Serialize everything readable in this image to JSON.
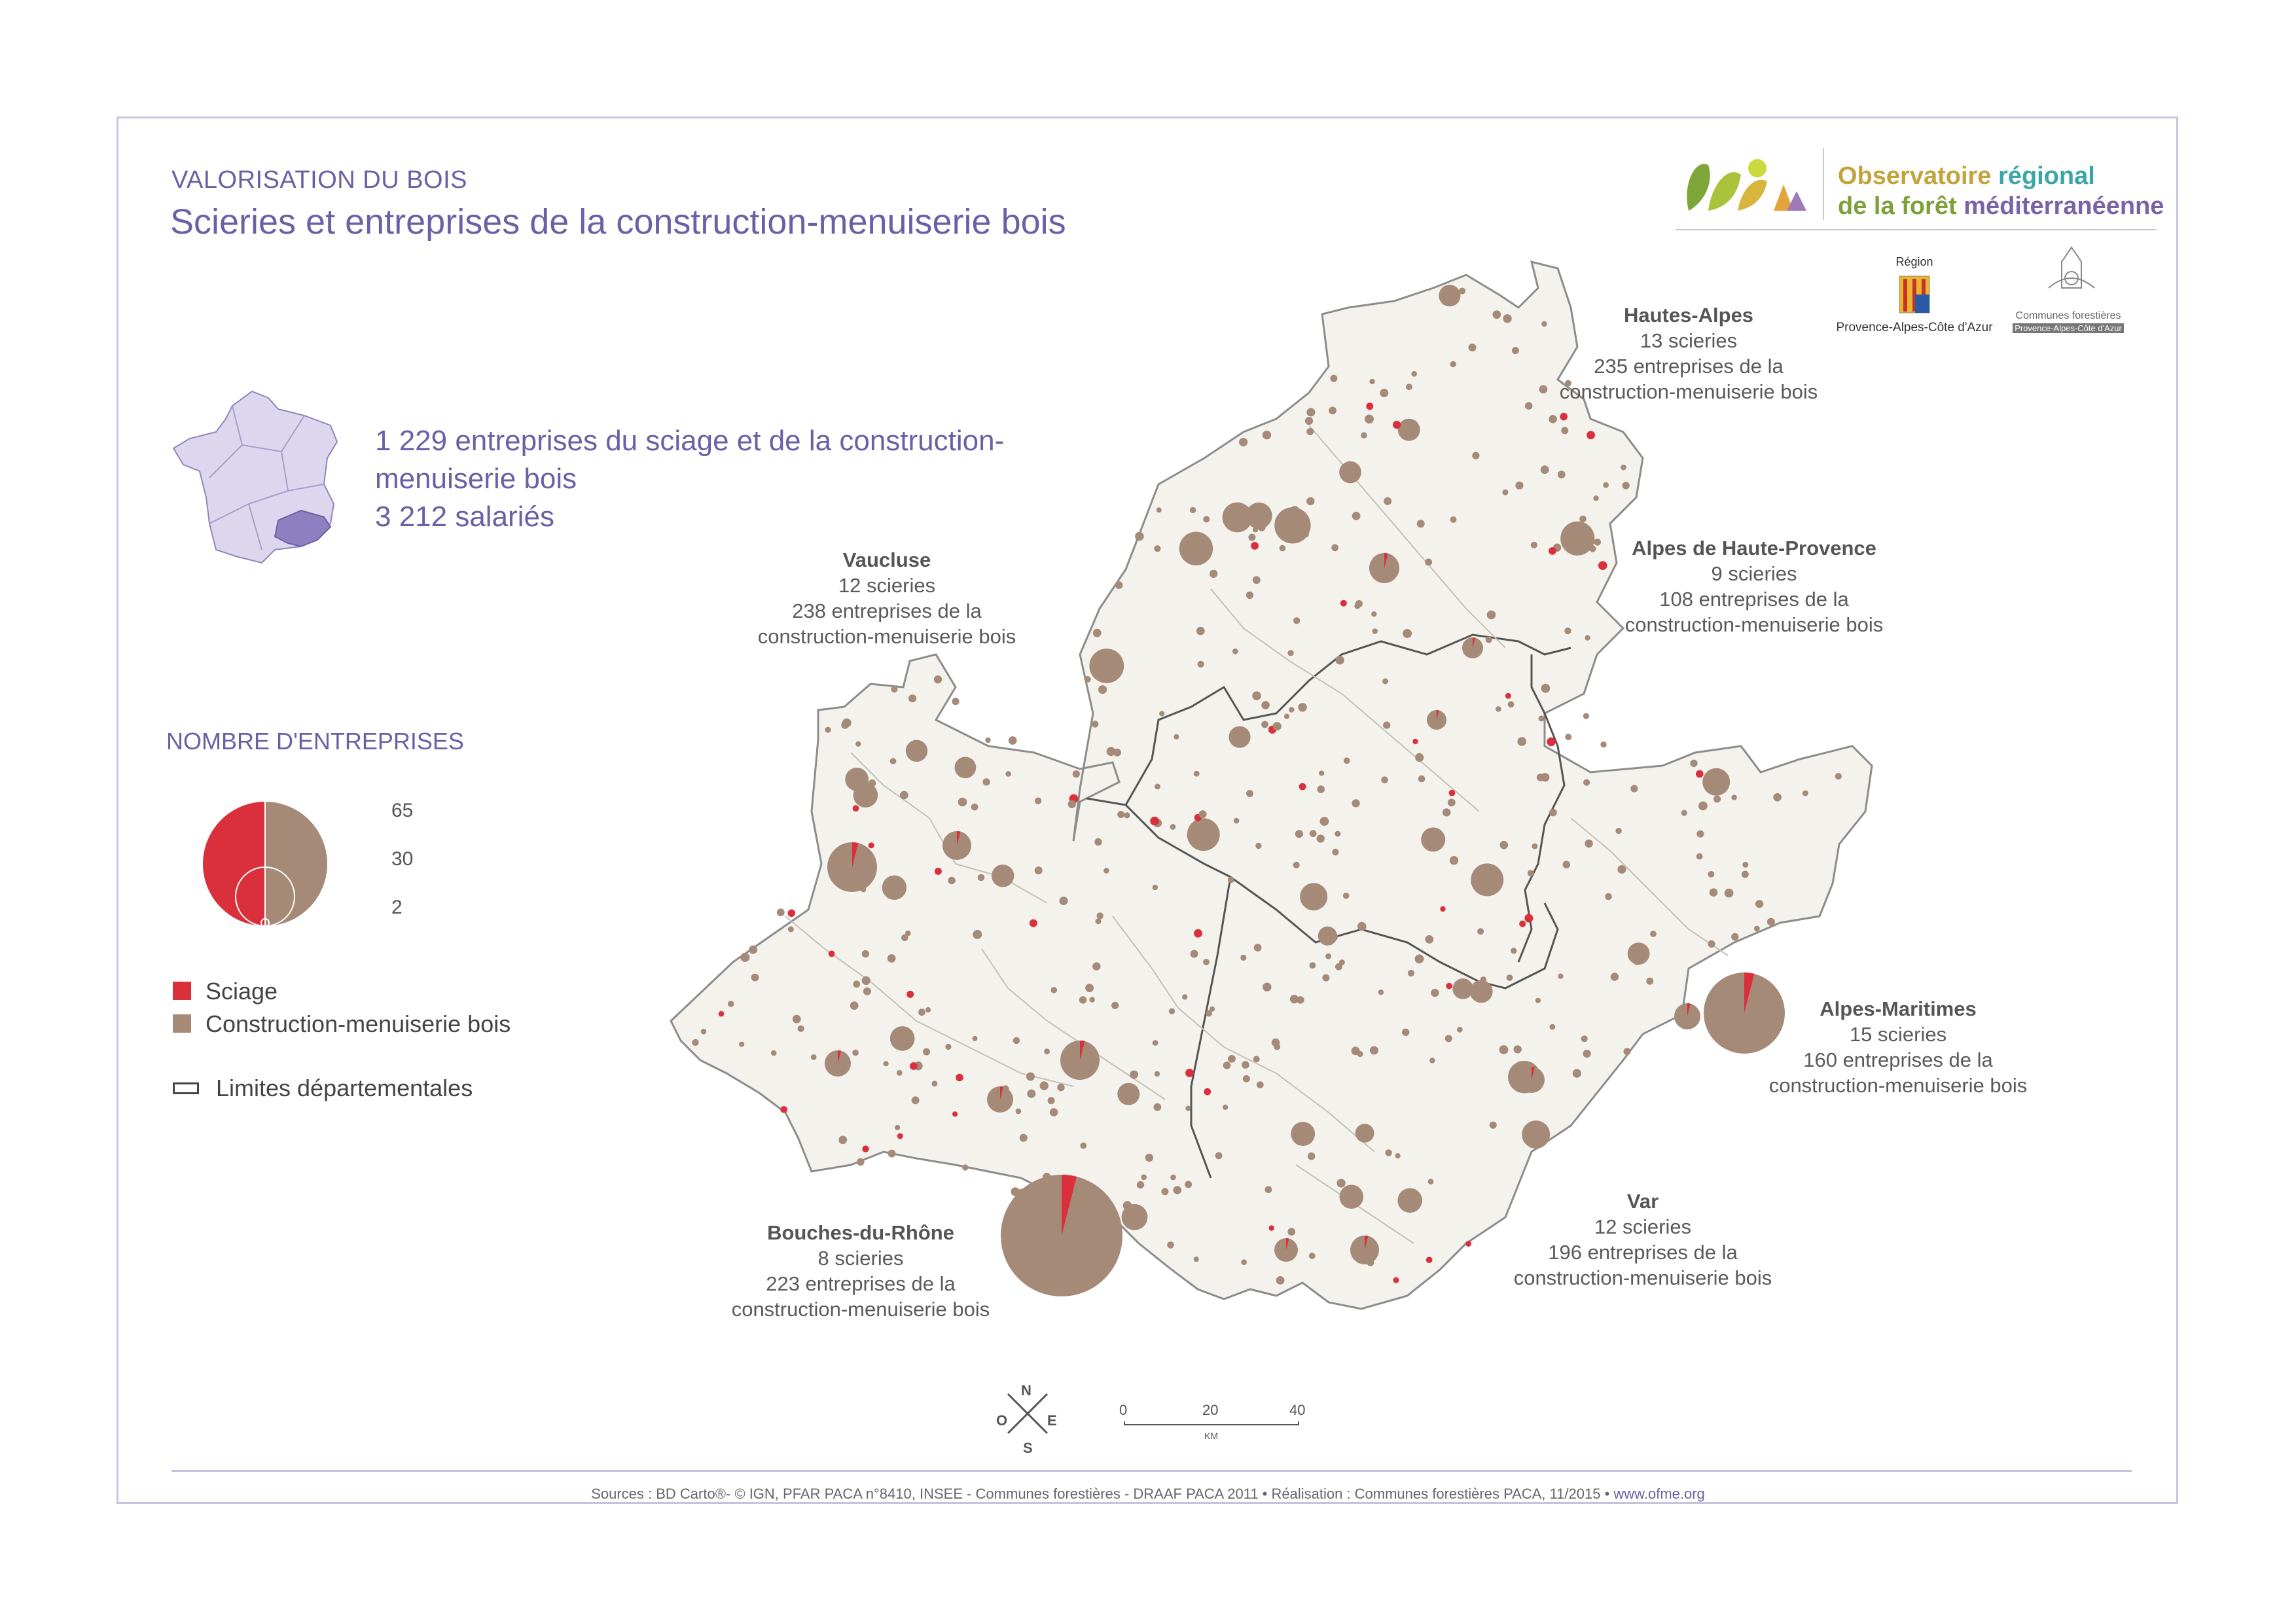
{
  "header": {
    "kicker": "VALORISATION DU BOIS",
    "title": "Scieries et entreprises de la construction-menuiserie bois"
  },
  "logo": {
    "line1_a": "Observatoire",
    "line1_b": "régional",
    "line2_a": "de la",
    "line2_b": "forêt",
    "line2_c": "méditerranéenne",
    "region_top": "Région",
    "region_bottom": "Provence-Alpes-Côte d'Azur",
    "communes": "Communes forestières",
    "communes_sub": "Provence-Alpes-Côte d'Azur"
  },
  "summary": {
    "line1": "1 229 entreprises du sciage et de la construction-",
    "line2": "menuiserie bois",
    "line3": "3 212 salariés"
  },
  "legend": {
    "title": "NOMBRE D'ENTREPRISES",
    "size_values": [
      "65",
      "30",
      "2"
    ],
    "items": [
      {
        "label": "Sciage",
        "color": "#d9303c"
      },
      {
        "label": "Construction-menuiserie bois",
        "color": "#a58a78"
      },
      {
        "label": "Limites départementales",
        "color": "#444444"
      }
    ]
  },
  "departments": [
    {
      "name": "Hautes-Alpes",
      "scieries": "13 scieries",
      "line2": "235 entreprises de la",
      "line3": "construction-menuiserie bois"
    },
    {
      "name": "Alpes de Haute-Provence",
      "scieries": "9 scieries",
      "line2": "108 entreprises de la",
      "line3": "construction-menuiserie bois"
    },
    {
      "name": "Vaucluse",
      "scieries": "12 scieries",
      "line2": "238 entreprises de la",
      "line3": "construction-menuiserie bois"
    },
    {
      "name": "Alpes-Maritimes",
      "scieries": "15 scieries",
      "line2": "160 entreprises de la",
      "line3": "construction-menuiserie bois"
    },
    {
      "name": "Var",
      "scieries": "12 scieries",
      "line2": "196 entreprises de la",
      "line3": "construction-menuiserie bois"
    },
    {
      "name": "Bouches-du-Rhône",
      "scieries": "8 scieries",
      "line2": "223 entreprises de la",
      "line3": "construction-menuiserie bois"
    }
  ],
  "compass": {
    "n": "N",
    "s": "S",
    "e": "E",
    "o": "O"
  },
  "scale": {
    "ticks": [
      "0",
      "20",
      "40"
    ],
    "unit": "KM"
  },
  "footer": {
    "sources": "Sources : BD Carto®- © IGN, PFAR PACA n°8410, INSEE - Communes forestières - DRAAF PACA 2011 • Réalisation : Communes forestières PACA, 11/2015 •",
    "link": "www.ofme.org"
  },
  "colors": {
    "accent": "#6b5fa6",
    "sciage": "#d9303c",
    "menuiserie": "#a58a78",
    "land": "#f4f2ec"
  }
}
